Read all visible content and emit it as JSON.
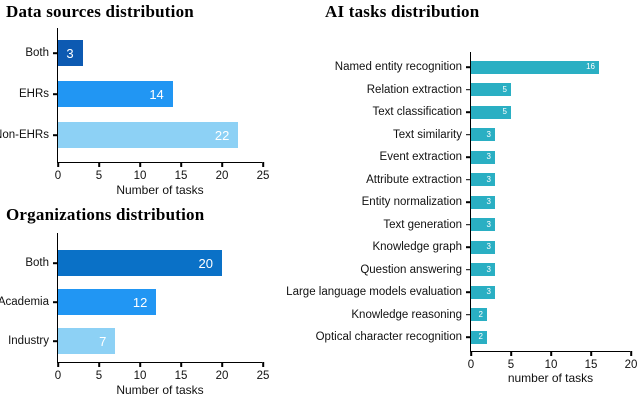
{
  "figure": {
    "background": "#ffffff",
    "axis_color": "#000000",
    "value_label_color": "#ffffff"
  },
  "chart_data": [
    {
      "type": "bar",
      "orientation": "horizontal",
      "title": "Data sources distribution",
      "categories": [
        "Both",
        "EHRs",
        "Non-EHRs"
      ],
      "values": [
        3,
        14,
        22
      ],
      "bar_colors": [
        "#0d5ab2",
        "#2196f3",
        "#8dd1f5"
      ],
      "value_labels_shown": true,
      "xlabel": "Number of tasks",
      "xlim": [
        0,
        25
      ],
      "xticks": [
        0,
        5,
        10,
        15,
        20,
        25
      ],
      "grid": false,
      "legend": "none"
    },
    {
      "type": "bar",
      "orientation": "horizontal",
      "title": "Organizations distribution",
      "categories": [
        "Both",
        "Academia",
        "Industry"
      ],
      "values": [
        20,
        12,
        7
      ],
      "bar_colors": [
        "#0a71c7",
        "#2196f3",
        "#8dd1f5"
      ],
      "value_labels_shown": true,
      "xlabel": "Number of tasks",
      "xlim": [
        0,
        25
      ],
      "xticks": [
        0,
        5,
        10,
        15,
        20,
        25
      ],
      "grid": false,
      "legend": "none"
    },
    {
      "type": "bar",
      "orientation": "horizontal",
      "title": "AI tasks distribution",
      "categories": [
        "Named entity recognition",
        "Relation extraction",
        "Text classification",
        "Text similarity",
        "Event extraction",
        "Attribute extraction",
        "Entity normalization",
        "Text generation",
        "Knowledge graph",
        "Question answering",
        "Large language models evaluation",
        "Knowledge reasoning",
        "Optical character recognition"
      ],
      "values": [
        16,
        5,
        5,
        3,
        3,
        3,
        3,
        3,
        3,
        3,
        3,
        2,
        2
      ],
      "bar_color": "#2aafc3",
      "value_labels_shown": true,
      "xlabel": "number of tasks",
      "xlim": [
        0,
        20
      ],
      "xticks": [
        0,
        5,
        10,
        15,
        20
      ],
      "grid": false,
      "legend": "none"
    }
  ]
}
